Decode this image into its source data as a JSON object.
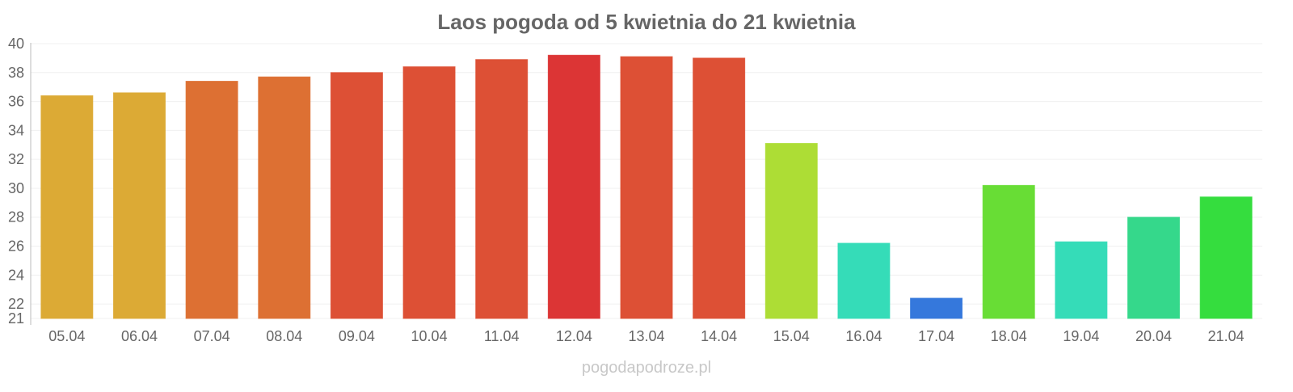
{
  "chart_data": {
    "type": "bar",
    "title": "Laos pogoda od 5 kwietnia do 21 kwietnia",
    "xlabel": "",
    "ylabel": "",
    "ylim": [
      21,
      40
    ],
    "yticks": [
      21,
      22,
      24,
      26,
      28,
      30,
      32,
      34,
      36,
      38,
      40
    ],
    "grid": true,
    "categories": [
      "05.04",
      "06.04",
      "07.04",
      "08.04",
      "09.04",
      "10.04",
      "11.04",
      "12.04",
      "13.04",
      "14.04",
      "15.04",
      "16.04",
      "17.04",
      "18.04",
      "19.04",
      "20.04",
      "21.04"
    ],
    "values": [
      36.4,
      36.6,
      37.4,
      37.7,
      38.0,
      38.4,
      38.9,
      39.2,
      39.1,
      39.0,
      33.1,
      26.2,
      22.4,
      30.2,
      26.3,
      28.0,
      29.4
    ],
    "colors": [
      "#dcaa35",
      "#dcaa35",
      "#dd7033",
      "#dd7033",
      "#dd5035",
      "#dd5035",
      "#dd5035",
      "#dc3535",
      "#dd5035",
      "#dd5035",
      "#addd35",
      "#35dcb8",
      "#3578dc",
      "#68dd35",
      "#35dcb8",
      "#35d88b",
      "#35dd3e"
    ]
  },
  "watermark": "pogodapodroze.pl"
}
